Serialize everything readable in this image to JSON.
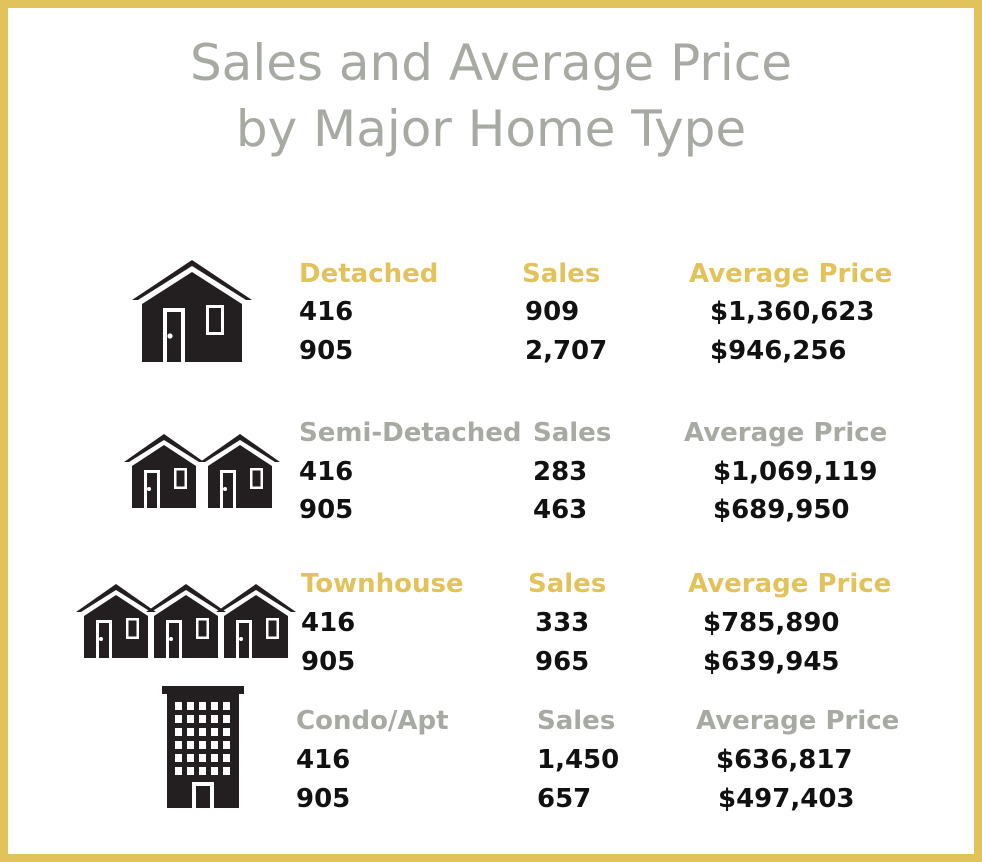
{
  "title": {
    "line1": "Sales and Average Price",
    "line2": "by Major Home Type"
  },
  "colors": {
    "gold": "#e2c25a",
    "grey": "#a6aaa2",
    "ink": "#231f20",
    "border": "#e2c25a"
  },
  "sections": [
    {
      "type": "Detached",
      "icon": "detached-house-icon",
      "sales_label": "Sales",
      "price_label": "Average Price",
      "rows": [
        {
          "area": "416",
          "sales": "909",
          "price": "$1,360,623"
        },
        {
          "area": "905",
          "sales": "2,707",
          "price": "$946,256"
        }
      ]
    },
    {
      "type": "Semi-Detached",
      "icon": "semi-detached-houses-icon",
      "sales_label": "Sales",
      "price_label": "Average Price",
      "rows": [
        {
          "area": "416",
          "sales": "283",
          "price": "$1,069,119"
        },
        {
          "area": "905",
          "sales": "463",
          "price": "$689,950"
        }
      ]
    },
    {
      "type": "Townhouse",
      "icon": "townhouses-icon",
      "sales_label": "Sales",
      "price_label": "Average Price",
      "rows": [
        {
          "area": "416",
          "sales": "333",
          "price": "$785,890"
        },
        {
          "area": "905",
          "sales": "965",
          "price": "$639,945"
        }
      ]
    },
    {
      "type": "Condo/Apt",
      "icon": "condo-building-icon",
      "sales_label": "Sales",
      "price_label": "Average Price",
      "rows": [
        {
          "area": "416",
          "sales": "1,450",
          "price": "$636,817"
        },
        {
          "area": "905",
          "sales": "657",
          "price": "$497,403"
        }
      ]
    }
  ]
}
